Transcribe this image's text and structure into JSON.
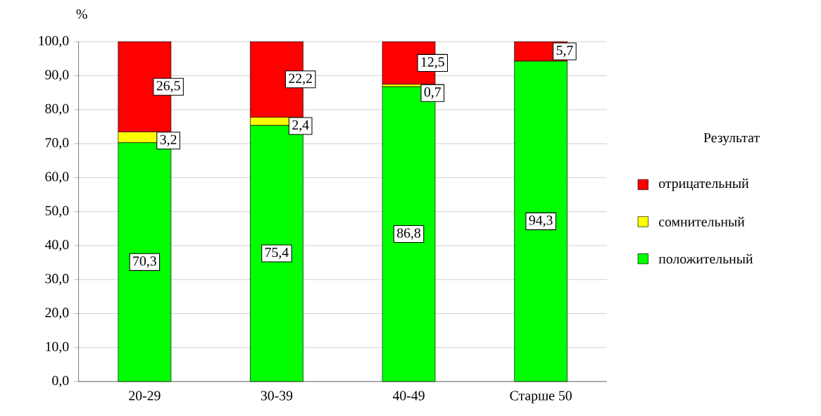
{
  "chart_data": {
    "type": "bar",
    "stacked": true,
    "ylabel": "%",
    "legend_title": "Результат",
    "legend": "right",
    "grid": "y",
    "categories": [
      "20-29",
      "30-39",
      "40-49",
      "Старше 50"
    ],
    "ylim": [
      0,
      100
    ],
    "yticks": [
      {
        "value": 0,
        "label": "0,0"
      },
      {
        "value": 10,
        "label": "10,0"
      },
      {
        "value": 20,
        "label": "20,0"
      },
      {
        "value": 30,
        "label": "30,0"
      },
      {
        "value": 40,
        "label": "40,0"
      },
      {
        "value": 50,
        "label": "50,0"
      },
      {
        "value": 60,
        "label": "60,0"
      },
      {
        "value": 70,
        "label": "70,0"
      },
      {
        "value": 80,
        "label": "80,0"
      },
      {
        "value": 90,
        "label": "90,0"
      },
      {
        "value": 100,
        "label": "100,0"
      }
    ],
    "series": [
      {
        "name": "положительный",
        "color": "#00ff00",
        "values": [
          70.3,
          75.4,
          86.8,
          94.3
        ],
        "value_labels": [
          "70,3",
          "75,4",
          "86,8",
          "94,3"
        ]
      },
      {
        "name": "сомнительный",
        "color": "#ffff00",
        "values": [
          3.2,
          2.4,
          0.7,
          null
        ],
        "value_labels": [
          "3,2",
          "2,4",
          "0,7",
          null
        ]
      },
      {
        "name": "отрицательный",
        "color": "#ff0000",
        "values": [
          26.5,
          22.2,
          12.5,
          5.7
        ],
        "value_labels": [
          "26,5",
          "22,2",
          "12,5",
          "5,7"
        ]
      }
    ]
  }
}
